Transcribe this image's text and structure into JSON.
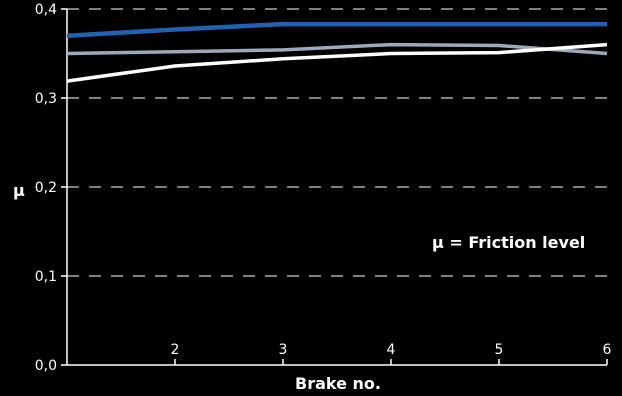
{
  "chart_data": {
    "type": "line",
    "xlabel": "Brake no.",
    "ylabel": "μ",
    "x": [
      1,
      2,
      3,
      4,
      5,
      6
    ],
    "x_tick_labels": [
      "2",
      "3",
      "4",
      "5",
      "6"
    ],
    "y_tick_labels": [
      "0,0",
      "0,1",
      "0,2",
      "0,3",
      "0,4"
    ],
    "xlim": [
      1,
      6
    ],
    "ylim": [
      0,
      0.4
    ],
    "grid": "horizontal dashed",
    "annotation": "μ = Friction level",
    "series": [
      {
        "values": [
          0.37,
          0.377,
          0.383,
          0.383,
          0.383,
          0.383
        ],
        "color": "#1f63b0"
      },
      {
        "values": [
          0.35,
          0.352,
          0.354,
          0.36,
          0.359,
          0.35
        ],
        "color": "#9aa9bb"
      },
      {
        "values": [
          0.319,
          0.336,
          0.344,
          0.35,
          0.351,
          0.36
        ],
        "color": "#ffffff"
      }
    ]
  }
}
